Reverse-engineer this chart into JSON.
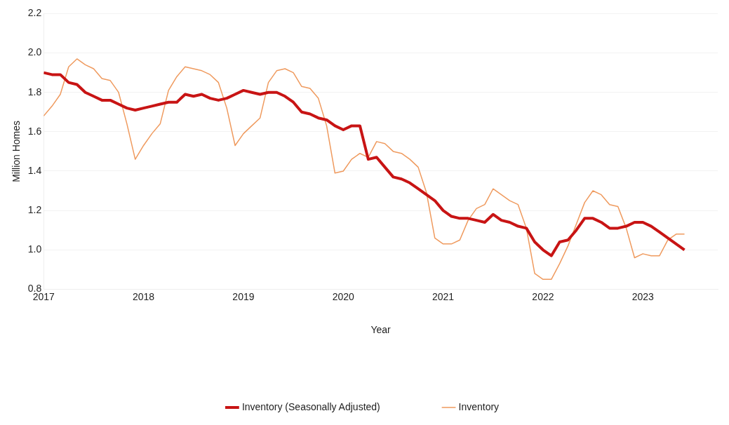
{
  "chart_data": {
    "type": "line",
    "xlabel": "Year",
    "ylabel": "Million Homes",
    "x": [
      "2017-01",
      "2017-02",
      "2017-03",
      "2017-04",
      "2017-05",
      "2017-06",
      "2017-07",
      "2017-08",
      "2017-09",
      "2017-10",
      "2017-11",
      "2017-12",
      "2018-01",
      "2018-02",
      "2018-03",
      "2018-04",
      "2018-05",
      "2018-06",
      "2018-07",
      "2018-08",
      "2018-09",
      "2018-10",
      "2018-11",
      "2018-12",
      "2019-01",
      "2019-02",
      "2019-03",
      "2019-04",
      "2019-05",
      "2019-06",
      "2019-07",
      "2019-08",
      "2019-09",
      "2019-10",
      "2019-11",
      "2019-12",
      "2020-01",
      "2020-02",
      "2020-03",
      "2020-04",
      "2020-05",
      "2020-06",
      "2020-07",
      "2020-08",
      "2020-09",
      "2020-10",
      "2020-11",
      "2020-12",
      "2021-01",
      "2021-02",
      "2021-03",
      "2021-04",
      "2021-05",
      "2021-06",
      "2021-07",
      "2021-08",
      "2021-09",
      "2021-10",
      "2021-11",
      "2021-12",
      "2022-01",
      "2022-02",
      "2022-03",
      "2022-04",
      "2022-05",
      "2022-06",
      "2022-07",
      "2022-08",
      "2022-09",
      "2022-10",
      "2022-11",
      "2022-12",
      "2023-01",
      "2023-02",
      "2023-03",
      "2023-04",
      "2023-05",
      "2023-06"
    ],
    "series": [
      {
        "name": "Inventory (Seasonally Adjusted)",
        "color": "#c81414",
        "values": [
          1.9,
          1.89,
          1.89,
          1.85,
          1.84,
          1.8,
          1.78,
          1.76,
          1.76,
          1.74,
          1.72,
          1.71,
          1.72,
          1.73,
          1.74,
          1.75,
          1.75,
          1.79,
          1.78,
          1.79,
          1.77,
          1.76,
          1.77,
          1.79,
          1.81,
          1.8,
          1.79,
          1.8,
          1.8,
          1.78,
          1.75,
          1.7,
          1.69,
          1.67,
          1.66,
          1.63,
          1.61,
          1.63,
          1.63,
          1.46,
          1.47,
          1.42,
          1.37,
          1.36,
          1.34,
          1.31,
          1.28,
          1.25,
          1.2,
          1.17,
          1.16,
          1.16,
          1.15,
          1.14,
          1.18,
          1.15,
          1.14,
          1.12,
          1.11,
          1.04,
          1.0,
          0.97,
          1.04,
          1.05,
          1.1,
          1.16,
          1.16,
          1.14,
          1.11,
          1.11,
          1.12,
          1.14,
          1.14,
          1.12,
          1.09,
          1.06,
          1.03,
          1.0
        ]
      },
      {
        "name": "Inventory",
        "color": "#ef9a5e",
        "values": [
          1.68,
          1.73,
          1.79,
          1.93,
          1.97,
          1.94,
          1.92,
          1.87,
          1.86,
          1.8,
          1.64,
          1.46,
          1.53,
          1.59,
          1.64,
          1.81,
          1.88,
          1.93,
          1.92,
          1.91,
          1.89,
          1.85,
          1.72,
          1.53,
          1.59,
          1.63,
          1.67,
          1.85,
          1.91,
          1.92,
          1.9,
          1.83,
          1.82,
          1.77,
          1.63,
          1.39,
          1.4,
          1.46,
          1.49,
          1.47,
          1.55,
          1.54,
          1.5,
          1.49,
          1.46,
          1.42,
          1.29,
          1.06,
          1.03,
          1.03,
          1.05,
          1.15,
          1.21,
          1.23,
          1.31,
          1.28,
          1.25,
          1.23,
          1.11,
          0.88,
          0.85,
          0.85,
          0.93,
          1.02,
          1.13,
          1.24,
          1.3,
          1.28,
          1.23,
          1.22,
          1.11,
          0.96,
          0.98,
          0.97,
          0.97,
          1.05,
          1.08,
          1.08
        ]
      }
    ],
    "xlim": [
      "2017-01",
      "2023-10"
    ],
    "xticks": [
      "2017",
      "2018",
      "2019",
      "2020",
      "2021",
      "2022",
      "2023"
    ],
    "ylim": [
      0.8,
      2.2
    ],
    "yticks": [
      0.8,
      {
        "value": 1,
        "label": "1.0"
      },
      1.2,
      1.4,
      1.6,
      1.8,
      {
        "value": 2,
        "label": "2.0"
      },
      2.2
    ],
    "grid": "y",
    "legend": "bottom",
    "marker": "none",
    "line_style": "solid"
  }
}
